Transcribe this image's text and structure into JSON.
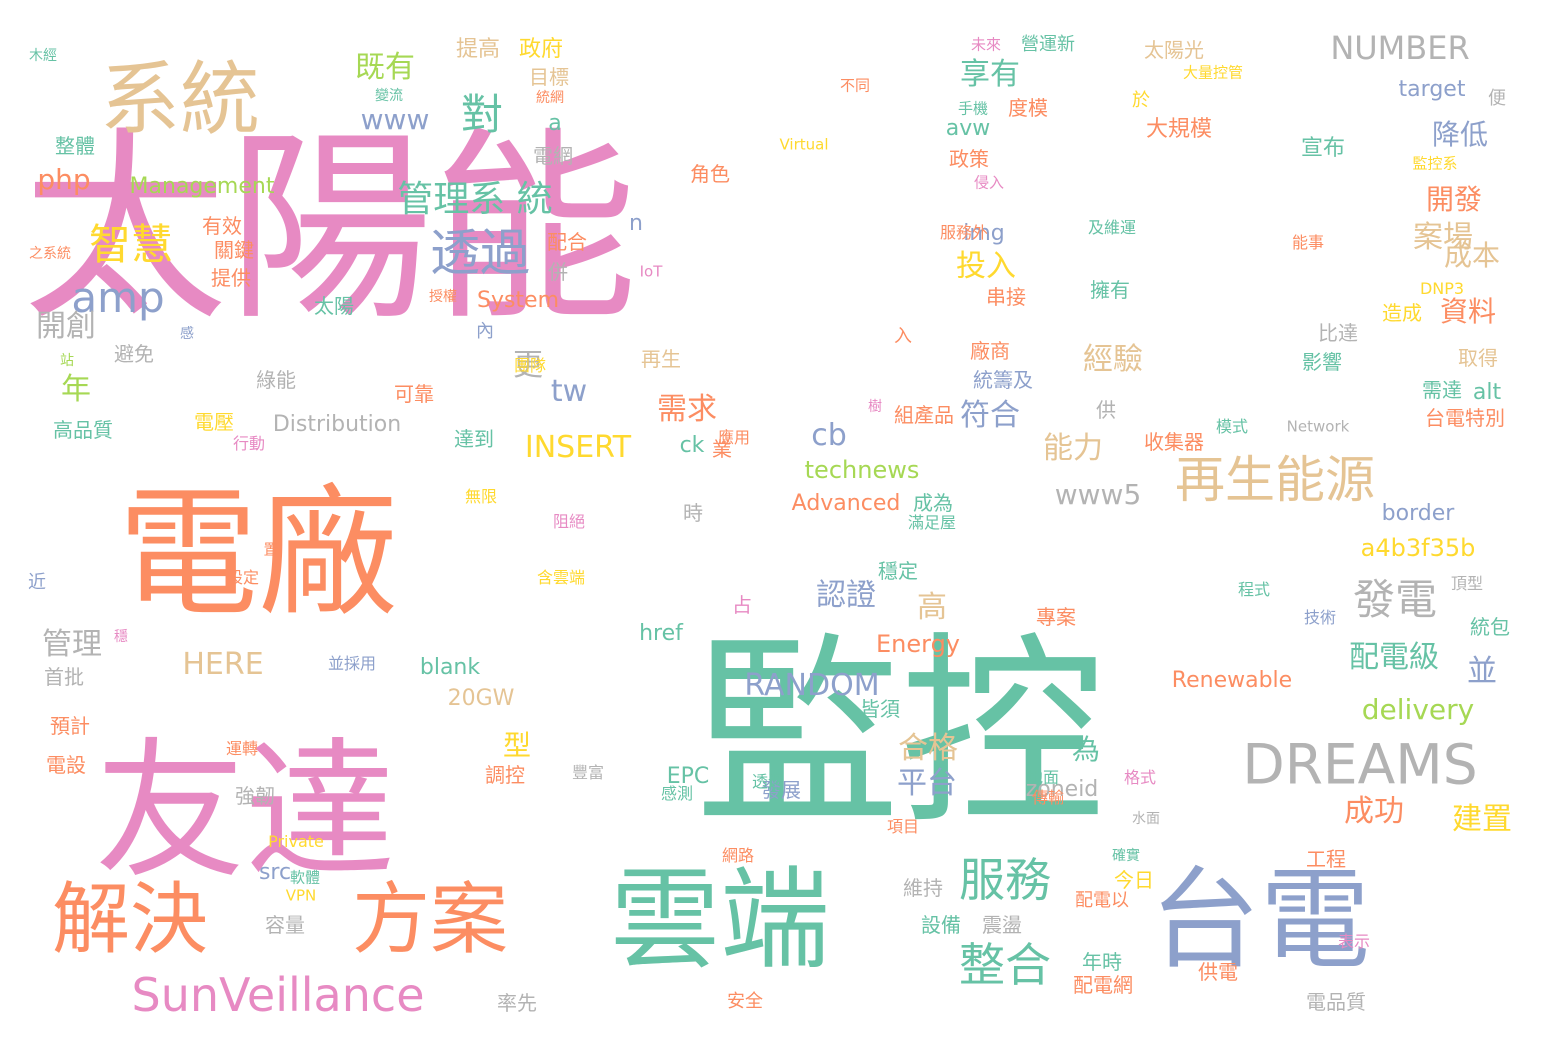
{
  "palette": {
    "pink": "#e78ac3",
    "green": "#66c2a5",
    "orange": "#fc8d62",
    "blue": "#8da0cb",
    "tan": "#e5c494",
    "lime": "#a6d854",
    "yellow": "#ffd92f",
    "gray": "#b3b3b3"
  },
  "words": [
    {
      "text": "太陽能",
      "color": "pink"
    },
    {
      "text": "監控",
      "color": "green"
    },
    {
      "text": "電廠",
      "color": "orange"
    },
    {
      "text": "友達",
      "color": "pink"
    },
    {
      "text": "雲端",
      "color": "green"
    },
    {
      "text": "台電",
      "color": "blue"
    },
    {
      "text": "系統",
      "color": "tan"
    },
    {
      "text": "解決",
      "color": "orange"
    },
    {
      "text": "方案",
      "color": "orange"
    },
    {
      "text": "SunVeillance",
      "color": "pink"
    },
    {
      "text": "再生能源",
      "color": "tan"
    },
    {
      "text": "DREAMS",
      "color": "gray"
    },
    {
      "text": "服務",
      "color": "green"
    },
    {
      "text": "整合",
      "color": "green"
    },
    {
      "text": "透過",
      "color": "blue"
    },
    {
      "text": "管理系 統",
      "color": "green"
    },
    {
      "text": "智慧",
      "color": "yellow"
    },
    {
      "text": "amp",
      "color": "blue"
    },
    {
      "text": "對",
      "color": "green"
    },
    {
      "text": "發電",
      "color": "gray"
    },
    {
      "text": "NUMBER",
      "color": "gray"
    },
    {
      "text": "RANDOM",
      "color": "blue"
    },
    {
      "text": "INSERT",
      "color": "yellow"
    },
    {
      "text": "technews",
      "color": "lime"
    },
    {
      "text": "a4b3f35b",
      "color": "yellow"
    },
    {
      "text": "delivery",
      "color": "lime"
    },
    {
      "text": "www5",
      "color": "gray"
    },
    {
      "text": "www",
      "color": "blue"
    },
    {
      "text": "php",
      "color": "orange"
    },
    {
      "text": "Management",
      "color": "lime"
    },
    {
      "text": "既有",
      "color": "lime"
    },
    {
      "text": "享有",
      "color": "green"
    },
    {
      "text": "案場",
      "color": "tan"
    },
    {
      "text": "開發",
      "color": "orange"
    },
    {
      "text": "降低",
      "color": "blue"
    },
    {
      "text": "成本",
      "color": "tan"
    },
    {
      "text": "資料",
      "color": "orange"
    },
    {
      "text": "配電級",
      "color": "green"
    },
    {
      "text": "成功",
      "color": "orange"
    },
    {
      "text": "建置",
      "color": "yellow"
    },
    {
      "text": "認證",
      "color": "blue"
    },
    {
      "text": "合格",
      "color": "tan"
    },
    {
      "text": "平台",
      "color": "blue"
    },
    {
      "text": "投入",
      "color": "yellow"
    },
    {
      "text": "符合",
      "color": "blue"
    },
    {
      "text": "能力",
      "color": "tan"
    },
    {
      "text": "經驗",
      "color": "tan"
    },
    {
      "text": "需求",
      "color": "orange"
    },
    {
      "text": "HERE",
      "color": "tan"
    },
    {
      "text": "Energy",
      "color": "orange"
    },
    {
      "text": "Renewable",
      "color": "orange"
    },
    {
      "text": "Advanced",
      "color": "orange"
    },
    {
      "text": "System",
      "color": "orange"
    },
    {
      "text": "Distribution",
      "color": "gray"
    },
    {
      "text": "border",
      "color": "blue"
    },
    {
      "text": "target",
      "color": "blue"
    },
    {
      "text": "zoneid",
      "color": "gray"
    },
    {
      "text": "blank",
      "color": "green"
    },
    {
      "text": "20GW",
      "color": "tan"
    },
    {
      "text": "href",
      "color": "green"
    },
    {
      "text": "管理",
      "color": "gray"
    },
    {
      "text": "開創",
      "color": "gray"
    },
    {
      "text": "年",
      "color": "lime"
    },
    {
      "text": "高",
      "color": "tan"
    },
    {
      "text": "並",
      "color": "blue"
    },
    {
      "text": "tw",
      "color": "blue"
    },
    {
      "text": "cb",
      "color": "blue"
    },
    {
      "text": "ck",
      "color": "green"
    },
    {
      "text": "更",
      "color": "gray"
    },
    {
      "text": "a",
      "color": "green"
    },
    {
      "text": "n",
      "color": "blue"
    },
    {
      "text": "img",
      "color": "blue"
    },
    {
      "text": "avw",
      "color": "green"
    },
    {
      "text": "alt",
      "color": "green"
    },
    {
      "text": "src",
      "color": "blue"
    },
    {
      "text": "EPC",
      "color": "green"
    },
    {
      "text": "政府",
      "color": "yellow"
    },
    {
      "text": "提高",
      "color": "tan"
    },
    {
      "text": "目標",
      "color": "tan"
    },
    {
      "text": "電網",
      "color": "gray"
    },
    {
      "text": "角色",
      "color": "orange"
    },
    {
      "text": "配合",
      "color": "orange"
    },
    {
      "text": "有效",
      "color": "orange"
    },
    {
      "text": "關鍵",
      "color": "orange"
    },
    {
      "text": "提供",
      "color": "orange"
    },
    {
      "text": "整體",
      "color": "green"
    },
    {
      "text": "高品質",
      "color": "green"
    },
    {
      "text": "太陽",
      "color": "green"
    },
    {
      "text": "綠能",
      "color": "gray"
    },
    {
      "text": "可靠",
      "color": "orange"
    },
    {
      "text": "達到",
      "color": "green"
    },
    {
      "text": "再生",
      "color": "tan"
    },
    {
      "text": "太陽光",
      "color": "tan"
    },
    {
      "text": "大規模",
      "color": "orange"
    },
    {
      "text": "宣布",
      "color": "green"
    },
    {
      "text": "度模",
      "color": "orange"
    },
    {
      "text": "政策",
      "color": "orange"
    },
    {
      "text": "比達",
      "color": "gray"
    },
    {
      "text": "影響",
      "color": "green"
    },
    {
      "text": "取得",
      "color": "tan"
    },
    {
      "text": "需達",
      "color": "green"
    },
    {
      "text": "台電特別",
      "color": "orange"
    },
    {
      "text": "造成",
      "color": "yellow"
    },
    {
      "text": "擁有",
      "color": "green"
    },
    {
      "text": "串接",
      "color": "orange"
    },
    {
      "text": "廠商",
      "color": "orange"
    },
    {
      "text": "統籌及",
      "color": "blue"
    },
    {
      "text": "組產品",
      "color": "orange"
    },
    {
      "text": "收集器",
      "color": "orange"
    },
    {
      "text": "成為",
      "color": "green"
    },
    {
      "text": "為",
      "color": "green"
    },
    {
      "text": "型",
      "color": "yellow"
    },
    {
      "text": "調控",
      "color": "orange"
    },
    {
      "text": "發展",
      "color": "blue"
    },
    {
      "text": "強韌",
      "color": "gray"
    },
    {
      "text": "穩定",
      "color": "green"
    },
    {
      "text": "皆須",
      "color": "green"
    },
    {
      "text": "首批",
      "color": "gray"
    },
    {
      "text": "預計",
      "color": "orange"
    },
    {
      "text": "電設",
      "color": "orange"
    },
    {
      "text": "今日",
      "color": "yellow"
    },
    {
      "text": "年時",
      "color": "green"
    },
    {
      "text": "配電網",
      "color": "orange"
    },
    {
      "text": "設備",
      "color": "green"
    },
    {
      "text": "震盪",
      "color": "gray"
    },
    {
      "text": "維持",
      "color": "gray"
    },
    {
      "text": "容量",
      "color": "gray"
    },
    {
      "text": "供電",
      "color": "orange"
    },
    {
      "text": "電品質",
      "color": "gray"
    },
    {
      "text": "率先",
      "color": "gray"
    },
    {
      "text": "工程",
      "color": "orange"
    },
    {
      "text": "專案",
      "color": "orange"
    },
    {
      "text": "統包",
      "color": "green"
    },
    {
      "text": "占",
      "color": "pink"
    },
    {
      "text": "電壓",
      "color": "yellow"
    },
    {
      "text": "時",
      "color": "gray"
    },
    {
      "text": "供",
      "color": "gray"
    },
    {
      "text": "併",
      "color": "gray"
    },
    {
      "text": "避免",
      "color": "gray"
    },
    {
      "text": "內",
      "color": "blue"
    },
    {
      "text": "入",
      "color": "orange"
    },
    {
      "text": "便",
      "color": "gray"
    },
    {
      "text": "近",
      "color": "blue"
    },
    {
      "text": "於",
      "color": "yellow"
    },
    {
      "text": "業",
      "color": "orange"
    },
    {
      "text": "配電以",
      "color": "orange"
    },
    {
      "text": "網路",
      "color": "orange"
    },
    {
      "text": "安全",
      "color": "orange"
    },
    {
      "text": "地面",
      "color": "green"
    },
    {
      "text": "格式",
      "color": "pink"
    },
    {
      "text": "傳輸",
      "color": "orange"
    },
    {
      "text": "表示",
      "color": "pink"
    },
    {
      "text": "技術",
      "color": "blue"
    },
    {
      "text": "程式",
      "color": "green"
    },
    {
      "text": "頂型",
      "color": "gray"
    },
    {
      "text": "項目",
      "color": "orange"
    },
    {
      "text": "感測",
      "color": "green"
    },
    {
      "text": "透過",
      "color": "green"
    },
    {
      "text": "豐富",
      "color": "gray"
    },
    {
      "text": "運轉",
      "color": "orange"
    },
    {
      "text": "並採用",
      "color": "blue"
    },
    {
      "text": "設定",
      "color": "orange"
    },
    {
      "text": "含雲端",
      "color": "yellow"
    },
    {
      "text": "阻絕",
      "color": "pink"
    },
    {
      "text": "無限",
      "color": "yellow"
    },
    {
      "text": "滿足屋",
      "color": "green"
    },
    {
      "text": "模式",
      "color": "green"
    },
    {
      "text": "Network",
      "color": "gray"
    },
    {
      "text": "應用",
      "color": "orange"
    },
    {
      "text": "行動",
      "color": "pink"
    },
    {
      "text": "團隊",
      "color": "yellow"
    },
    {
      "text": "服務外",
      "color": "orange"
    },
    {
      "text": "及維運",
      "color": "green"
    },
    {
      "text": "能事",
      "color": "orange"
    },
    {
      "text": "DNP3",
      "color": "yellow"
    },
    {
      "text": "IoT",
      "color": "pink"
    },
    {
      "text": "Virtual",
      "color": "yellow"
    },
    {
      "text": "VPN",
      "color": "yellow"
    },
    {
      "text": "Private",
      "color": "yellow"
    },
    {
      "text": "軟體",
      "color": "green"
    },
    {
      "text": "不同",
      "color": "orange"
    },
    {
      "text": "手機",
      "color": "green"
    },
    {
      "text": "侵入",
      "color": "pink"
    },
    {
      "text": "大量控管",
      "color": "yellow"
    },
    {
      "text": "監控系",
      "color": "yellow"
    },
    {
      "text": "未來",
      "color": "pink"
    },
    {
      "text": "營運新",
      "color": "green"
    },
    {
      "text": "統網",
      "color": "orange"
    },
    {
      "text": "變流",
      "color": "green"
    },
    {
      "text": "木經",
      "color": "green"
    },
    {
      "text": "之系統",
      "color": "orange"
    },
    {
      "text": "站",
      "color": "lime"
    },
    {
      "text": "感",
      "color": "blue"
    },
    {
      "text": "授權",
      "color": "orange"
    },
    {
      "text": "樹",
      "color": "pink"
    },
    {
      "text": "穩",
      "color": "pink"
    },
    {
      "text": "置",
      "color": "orange"
    },
    {
      "text": "水面",
      "color": "gray"
    },
    {
      "text": "確實",
      "color": "green"
    }
  ]
}
